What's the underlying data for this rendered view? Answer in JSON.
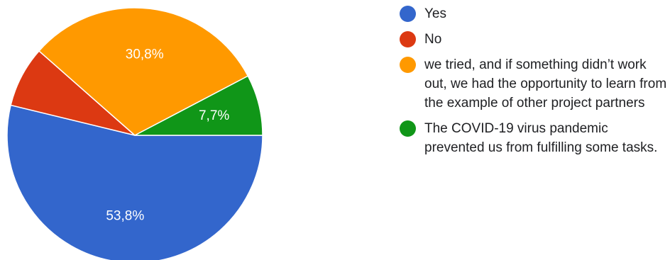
{
  "chart_data": {
    "type": "pie",
    "title": "",
    "slices": [
      {
        "label": "Yes",
        "value": 53.8,
        "display": "53,8%",
        "color": "#3366cc"
      },
      {
        "label": "No",
        "value": 7.7,
        "display": "",
        "color": "#dc3912"
      },
      {
        "label": "we tried, and if something didn’t work out, we had the opportunity to learn from the example of other project partners",
        "value": 30.8,
        "display": "30,8%",
        "color": "#ff9900"
      },
      {
        "label": "The COVID-19 virus pandemic prevented us from fulfilling some tasks.",
        "value": 7.7,
        "display": "7,7%",
        "color": "#109618"
      }
    ],
    "start_angle_deg": 90,
    "direction": "clockwise",
    "legend_position": "right"
  }
}
